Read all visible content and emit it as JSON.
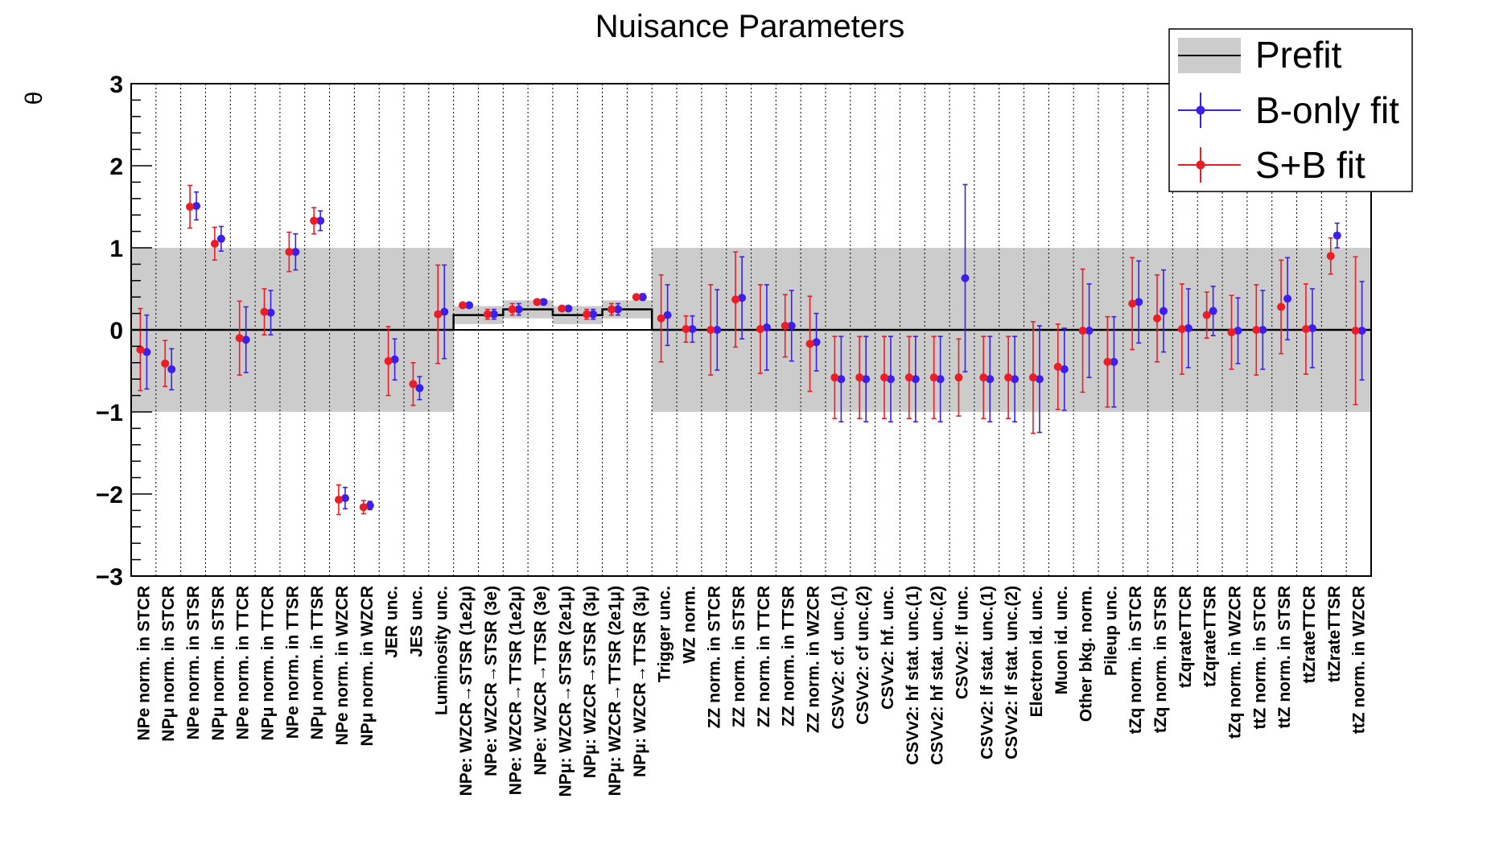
{
  "chart_data": {
    "type": "scatter",
    "title": "Nuisance Parameters",
    "ylabel": "θ",
    "ylim": [
      -3,
      3
    ],
    "yticks": [
      "−3",
      "−2",
      "−1",
      "0",
      "1",
      "2",
      "3"
    ],
    "grid": "vertical dotted",
    "legend_position": "top-right",
    "legend": [
      "Prefit",
      "B-only fit",
      "S+B fit"
    ],
    "colors": {
      "prefit_band": "#cccccc",
      "bonly": "#3b1ef0",
      "spb": "#ee1c24"
    },
    "categories": [
      "NPe norm. in STCR",
      "NPμ norm. in STCR",
      "NPe norm. in STSR",
      "NPμ norm. in STSR",
      "NPe norm. in TTCR",
      "NPμ norm. in TTCR",
      "NPe norm. in TTSR",
      "NPμ norm. in TTSR",
      "NPe norm. in WZCR",
      "NPμ norm. in WZCR",
      "JER unc.",
      "JES unc.",
      "Luminosity unc.",
      "NPe: WZCR→STSR (1e2μ)",
      "NPe: WZCR→STSR (3e)",
      "NPe: WZCR→TTSR (1e2μ)",
      "NPe: WZCR→TTSR (3e)",
      "NPμ: WZCR→STSR (2e1μ)",
      "NPμ: WZCR→STSR (3μ)",
      "NPμ: WZCR→TTSR (2e1μ)",
      "NPμ: WZCR→TTSR (3μ)",
      "Trigger unc.",
      "WZ norm.",
      "ZZ norm. in STCR",
      "ZZ norm. in STSR",
      "ZZ norm. in TTCR",
      "ZZ norm. in TTSR",
      "ZZ norm. in WZCR",
      "CSVv2: cf. unc.(1)",
      "CSVv2: cf unc.(2)",
      "CSVv2: hf. unc.",
      "CSVv2: hf stat. unc.(1)",
      "CSVv2: hf stat. unc.(2)",
      "CSVv2: lf unc.",
      "CSVv2: lf stat. unc.(1)",
      "CSVv2: lf stat. unc.(2)",
      "Electron id. unc.",
      "Muon id. unc.",
      "Other bkg. norm.",
      "Pileup unc.",
      "tZq norm. in STCR",
      "tZq norm. in STSR",
      "tZqrateTTCR",
      "tZqrateTTSR",
      "tZq norm. in WZCR",
      "ttZ norm. in STCR",
      "ttZ norm. in STSR",
      "ttZrateTTCR",
      "ttZrateTTSR",
      "ttZ norm. in WZCR"
    ],
    "prefit": {
      "center": [
        0,
        0,
        0,
        0,
        0,
        0,
        0,
        0,
        0,
        0,
        0,
        0,
        0,
        0.18,
        0.18,
        0.25,
        0.25,
        0.18,
        0.18,
        0.25,
        0.25,
        0,
        0,
        0,
        0,
        0,
        0,
        0,
        0,
        0,
        0,
        0,
        0,
        0,
        0,
        0,
        0,
        0,
        0,
        0,
        0,
        0,
        0,
        0,
        0,
        0,
        0,
        0,
        0,
        0
      ],
      "half_width": [
        1,
        1,
        1,
        1,
        1,
        1,
        1,
        1,
        1,
        1,
        1,
        1,
        1,
        0.11,
        0.11,
        0.11,
        0.11,
        0.11,
        0.11,
        0.11,
        0.11,
        1,
        1,
        1,
        1,
        1,
        1,
        1,
        1,
        1,
        1,
        1,
        1,
        1,
        1,
        1,
        1,
        1,
        1,
        1,
        1,
        1,
        1,
        1,
        1,
        1,
        1,
        1,
        1,
        1
      ]
    },
    "series": [
      {
        "name": "B-only fit",
        "values": [
          -0.27,
          -0.48,
          1.51,
          1.11,
          -0.12,
          0.21,
          0.95,
          1.33,
          -2.05,
          -2.14,
          -0.36,
          -0.71,
          0.22,
          0.3,
          0.19,
          0.25,
          0.34,
          0.26,
          0.19,
          0.25,
          0.4,
          0.18,
          0.01,
          0.0,
          0.39,
          0.03,
          0.05,
          -0.15,
          -0.6,
          -0.6,
          -0.6,
          -0.6,
          -0.6,
          0.63,
          -0.6,
          -0.6,
          -0.6,
          -0.48,
          -0.01,
          -0.39,
          0.34,
          0.23,
          0.02,
          0.23,
          -0.01,
          0.0,
          0.38,
          0.02,
          1.15,
          -0.01
        ],
        "errors": [
          0.45,
          0.25,
          0.17,
          0.15,
          0.4,
          0.27,
          0.22,
          0.12,
          0.13,
          0.05,
          0.25,
          0.14,
          0.57,
          0.03,
          0.06,
          0.07,
          0.03,
          0.03,
          0.06,
          0.07,
          0.04,
          0.37,
          0.16,
          0.49,
          0.5,
          0.52,
          0.43,
          0.35,
          0.52,
          0.52,
          0.52,
          0.52,
          0.52,
          1.14,
          0.52,
          0.52,
          0.65,
          0.5,
          0.57,
          0.55,
          0.5,
          0.5,
          0.48,
          0.3,
          0.4,
          0.48,
          0.5,
          0.48,
          0.15,
          0.6
        ]
      },
      {
        "name": "S+B fit",
        "values": [
          -0.24,
          -0.41,
          1.5,
          1.05,
          -0.1,
          0.22,
          0.95,
          1.33,
          -2.07,
          -2.16,
          -0.38,
          -0.66,
          0.19,
          0.3,
          0.19,
          0.25,
          0.34,
          0.26,
          0.19,
          0.25,
          0.4,
          0.14,
          0.01,
          0.0,
          0.37,
          0.01,
          0.05,
          -0.17,
          -0.58,
          -0.58,
          -0.58,
          -0.58,
          -0.58,
          -0.58,
          -0.58,
          -0.58,
          -0.58,
          -0.45,
          -0.01,
          -0.39,
          0.32,
          0.14,
          0.01,
          0.18,
          -0.03,
          0.0,
          0.28,
          0.01,
          0.9,
          -0.01
        ],
        "errors": [
          0.5,
          0.28,
          0.26,
          0.2,
          0.45,
          0.28,
          0.24,
          0.16,
          0.18,
          0.08,
          0.42,
          0.26,
          0.6,
          0.02,
          0.06,
          0.07,
          0.03,
          0.03,
          0.06,
          0.07,
          0.03,
          0.53,
          0.16,
          0.55,
          0.58,
          0.54,
          0.38,
          0.58,
          0.5,
          0.5,
          0.5,
          0.5,
          0.5,
          0.47,
          0.5,
          0.5,
          0.68,
          0.52,
          0.75,
          0.55,
          0.56,
          0.53,
          0.55,
          0.28,
          0.45,
          0.55,
          0.57,
          0.55,
          0.22,
          0.9
        ]
      }
    ]
  }
}
